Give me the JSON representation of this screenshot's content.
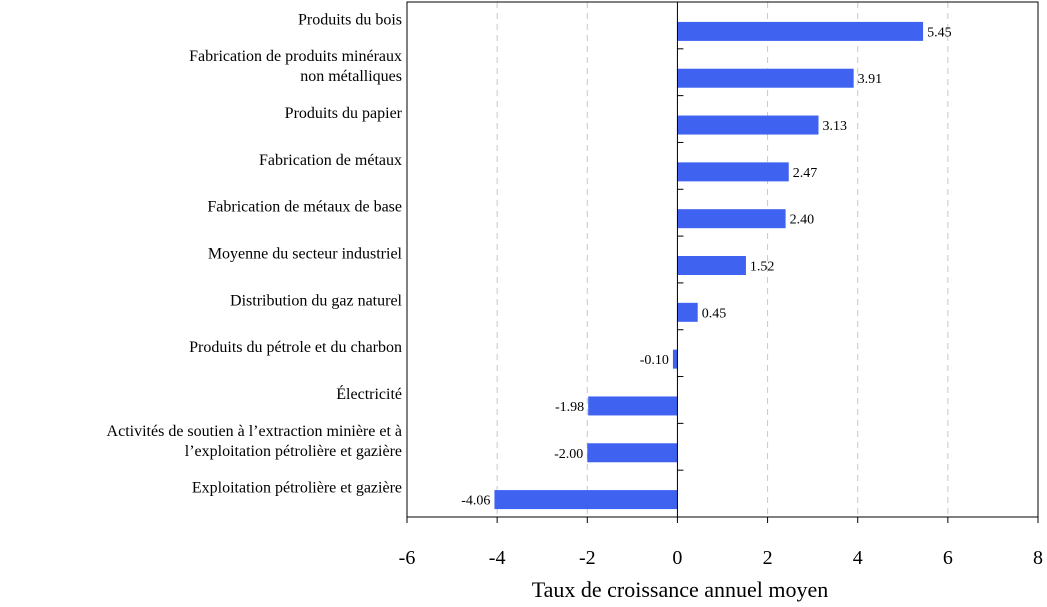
{
  "chart_data": {
    "type": "bar",
    "orientation": "horizontal",
    "categories": [
      [
        "Produits du bois"
      ],
      [
        "Fabrication de produits minéraux",
        "non métalliques"
      ],
      [
        "Produits du papier"
      ],
      [
        "Fabrication de métaux"
      ],
      [
        "Fabrication de métaux de base"
      ],
      [
        "Moyenne du secteur industriel"
      ],
      [
        "Distribution du gaz naturel"
      ],
      [
        "Produits du pétrole et du charbon"
      ],
      [
        "Électricité"
      ],
      [
        "Activités de soutien à l’extraction minière et à",
        "l’exploitation pétrolière et gazière"
      ],
      [
        "Exploitation pétrolière et gazière"
      ]
    ],
    "values": [
      5.45,
      3.91,
      3.13,
      2.47,
      2.4,
      1.52,
      0.45,
      -0.1,
      -1.98,
      -2.0,
      -4.06
    ],
    "value_labels": [
      "5.45",
      "3.91",
      "3.13",
      "2.47",
      "2.40",
      "1.52",
      "0.45",
      "-0.10",
      "-1.98",
      "-2.00",
      "-4.06"
    ],
    "xlabel": "Taux de croissance annuel moyen",
    "ylabel": "",
    "xlim": [
      -6,
      8
    ],
    "xticks": [
      -6,
      -4,
      -2,
      0,
      2,
      4,
      6,
      8
    ],
    "xtick_labels": [
      "-6",
      "-4",
      "-2",
      "0",
      "2",
      "4",
      "6",
      "8"
    ],
    "grid": "vertical dashed",
    "bar_color": "#3f63f0",
    "grid_color": "#c8c8c8"
  }
}
